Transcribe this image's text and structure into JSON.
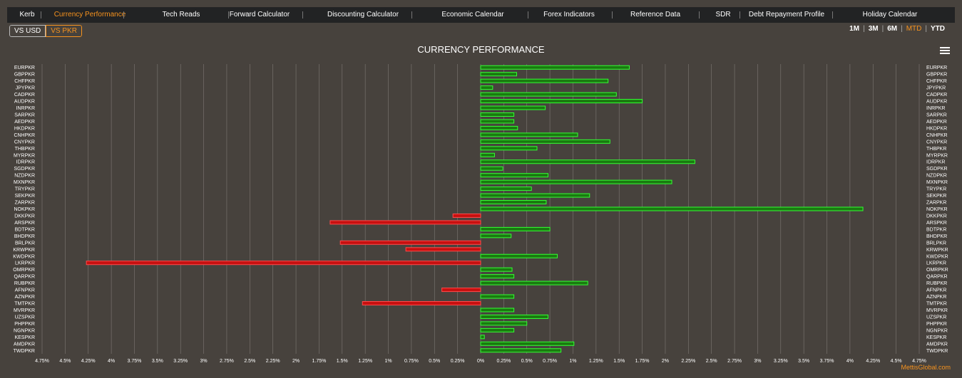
{
  "nav": {
    "items": [
      {
        "label": "Kerb",
        "name": "nav-kerb"
      },
      {
        "label": "Currency Performance",
        "name": "nav-currency-performance",
        "active": true
      },
      {
        "label": "Tech Reads",
        "name": "nav-tech-reads"
      },
      {
        "label": "Forward Calculator",
        "name": "nav-forward-calculator"
      },
      {
        "label": "Discounting Calculator",
        "name": "nav-discounting-calculator"
      },
      {
        "label": "Economic Calendar",
        "name": "nav-economic-calendar"
      },
      {
        "label": "Forex Indicators",
        "name": "nav-forex-indicators"
      },
      {
        "label": "Reference Data",
        "name": "nav-reference-data"
      },
      {
        "label": "SDR",
        "name": "nav-sdr"
      },
      {
        "label": "Debt Repayment Profile",
        "name": "nav-debt-repayment-profile"
      },
      {
        "label": "Holiday Calendar",
        "name": "nav-holiday-calendar"
      }
    ]
  },
  "toggle": {
    "vs_usd": "VS USD",
    "vs_pkr": "VS PKR",
    "selected": "VS PKR"
  },
  "periods": {
    "items": [
      "1M",
      "3M",
      "6M",
      "MTD",
      "YTD"
    ],
    "selected": "MTD"
  },
  "colors": {
    "accent": "#f7931e",
    "positive": "#2ecc40",
    "negative": "#ff2020",
    "background": "#47423d",
    "grid": "#8c8782"
  },
  "footer": {
    "credit": "MettisGlobal.com"
  },
  "chart_data": {
    "type": "bar",
    "orientation": "horizontal",
    "title": "CURRENCY PERFORMANCE",
    "xlabel": "",
    "ylabel": "",
    "xlim": [
      -4.75,
      4.75
    ],
    "tick_values": [
      -4.75,
      -4.5,
      -4.25,
      -4,
      -3.75,
      -3.5,
      -3.25,
      -3,
      -2.75,
      -2.5,
      -2.25,
      -2,
      -1.75,
      -1.5,
      -1.25,
      -1,
      -0.75,
      -0.5,
      -0.25,
      0,
      0.25,
      0.5,
      0.75,
      1,
      1.25,
      1.5,
      1.75,
      2,
      2.25,
      2.5,
      2.75,
      3,
      3.25,
      3.5,
      3.75,
      4,
      4.25,
      4.5,
      4.75
    ],
    "tick_labels": [
      "4.75%",
      "4.5%",
      "4.25%",
      "4%",
      "3.75%",
      "3.5%",
      "3.25%",
      "3%",
      "2.75%",
      "2.5%",
      "2.25%",
      "2%",
      "1.75%",
      "1.5%",
      "1.25%",
      "1%",
      "0.75%",
      "0.5%",
      "0.25%",
      "0%",
      "0.25%",
      "0.5%",
      "0.75%",
      "1%",
      "1.25%",
      "1.5%",
      "1.75%",
      "2%",
      "2.25%",
      "2.5%",
      "2.75%",
      "3%",
      "3.25%",
      "3.5%",
      "3.75%",
      "4%",
      "4.25%",
      "4.5%",
      "4.75%"
    ],
    "grid": true,
    "categories": [
      "EURPKR",
      "GBPPKR",
      "CHFPKR",
      "JPYPKR",
      "CADPKR",
      "AUDPKR",
      "INRPKR",
      "SARPKR",
      "AEDPKR",
      "HKDPKR",
      "CNHPKR",
      "CNYPKR",
      "THBPKR",
      "MYRPKR",
      "IDRPKR",
      "SGDPKR",
      "NZDPKR",
      "MXNPKR",
      "TRYPKR",
      "SEKPKR",
      "ZARPKR",
      "NOKPKR",
      "DKKPKR",
      "ARSPKR",
      "BDTPKR",
      "BHDPKR",
      "BRLPKR",
      "KRWPKR",
      "KWDPKR",
      "LKRPKR",
      "OMRPKR",
      "QARPKR",
      "RUBPKR",
      "AFNPKR",
      "AZNPKR",
      "TMTPKR",
      "MVRPKR",
      "UZSPKR",
      "PHPPKR",
      "NGNPKR",
      "KESPKR",
      "AMDPKR",
      "TWDPKR"
    ],
    "values": [
      1.61,
      0.39,
      1.38,
      0.13,
      1.47,
      1.75,
      0.7,
      0.36,
      0.36,
      0.4,
      1.05,
      1.4,
      0.61,
      0.15,
      2.32,
      0.24,
      0.73,
      2.07,
      0.55,
      1.18,
      0.71,
      4.14,
      -0.3,
      -1.63,
      0.75,
      0.33,
      -1.52,
      -0.81,
      0.83,
      -4.27,
      0.34,
      0.36,
      1.16,
      -0.42,
      0.36,
      -1.28,
      0.36,
      0.73,
      0.5,
      0.36,
      0.04,
      1.01,
      0.87
    ]
  }
}
